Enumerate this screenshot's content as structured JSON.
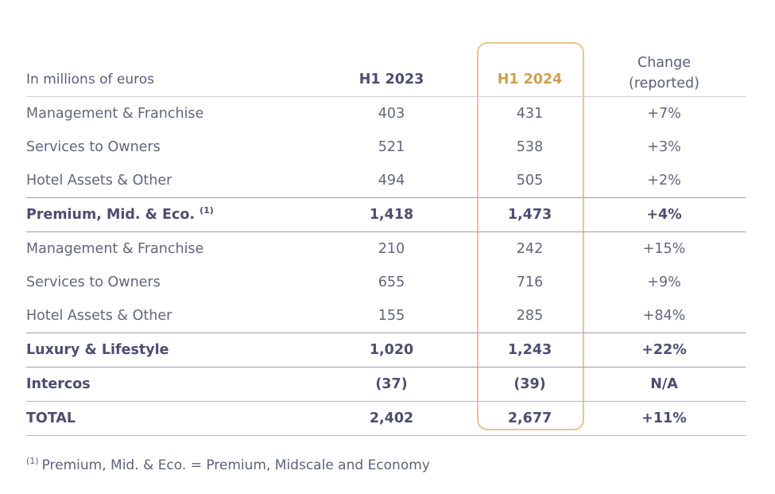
{
  "colors": {
    "background": "#ffffff",
    "text": "#64647f",
    "text_bold": "#4d4d70",
    "accent_gold_text": "#cf9f4f",
    "gold_box_border": "#e8c68f",
    "line_light": "#cdcdd9",
    "line_dark": "#9b9bb0",
    "line_medium": "#b6b6c5"
  },
  "chart_data": {
    "type": "table",
    "unit_label": "In millions of euros",
    "columns": [
      "In millions of euros",
      "H1 2023",
      "H1 2024",
      "Change (reported)"
    ],
    "header": {
      "col_2023": "H1 2023",
      "col_2024": "H1 2024",
      "change_line1": "Change",
      "change_line2": "(reported)"
    },
    "highlighted_column": "H1 2024",
    "rows": [
      {
        "label": "Management & Franchise",
        "h1_2023": "403",
        "h1_2024": "431",
        "change": "+7%",
        "bold": false
      },
      {
        "label": "Services to Owners",
        "h1_2023": "521",
        "h1_2024": "538",
        "change": "+3%",
        "bold": false
      },
      {
        "label": "Hotel Assets & Other",
        "h1_2023": "494",
        "h1_2024": "505",
        "change": "+2%",
        "bold": false
      },
      {
        "label": "Premium, Mid. & Eco.",
        "footnote_ref": "(1)",
        "h1_2023": "1,418",
        "h1_2024": "1,473",
        "change": "+4%",
        "bold": true
      },
      {
        "label": "Management & Franchise",
        "h1_2023": "210",
        "h1_2024": "242",
        "change": "+15%",
        "bold": false
      },
      {
        "label": "Services to Owners",
        "h1_2023": "655",
        "h1_2024": "716",
        "change": "+9%",
        "bold": false
      },
      {
        "label": "Hotel Assets & Other",
        "h1_2023": "155",
        "h1_2024": "285",
        "change": "+84%",
        "bold": false
      },
      {
        "label": "Luxury & Lifestyle",
        "h1_2023": "1,020",
        "h1_2024": "1,243",
        "change": "+22%",
        "bold": true
      },
      {
        "label": "Intercos",
        "h1_2023": "(37)",
        "h1_2024": "(39)",
        "change": "N/A",
        "bold": true
      },
      {
        "label": "TOTAL",
        "h1_2023": "2,402",
        "h1_2024": "2,677",
        "change": "+11%",
        "bold": true
      }
    ],
    "footnote": {
      "ref": "(1)",
      "text": "Premium, Mid. & Eco. = Premium, Midscale and Economy"
    }
  }
}
